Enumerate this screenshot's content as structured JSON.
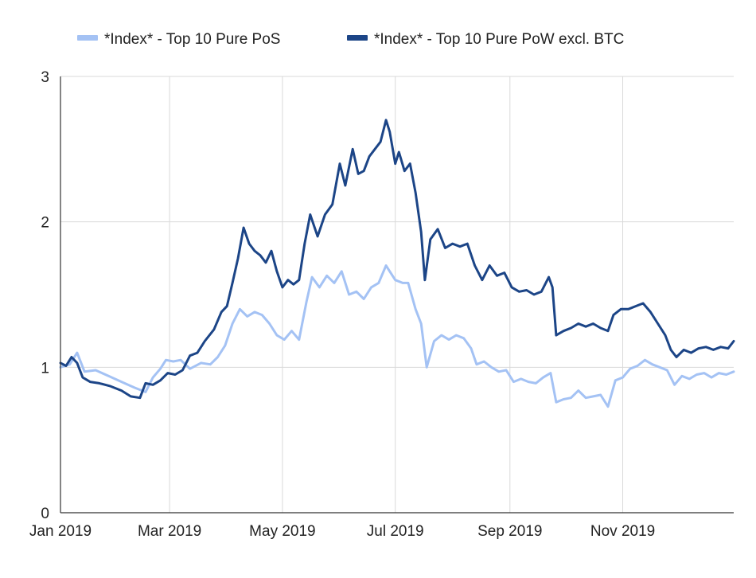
{
  "chart_data": {
    "type": "line",
    "title": "",
    "xlabel": "",
    "ylabel": "",
    "ylim": [
      0,
      3
    ],
    "xlim": [
      "2019-01-01",
      "2019-12-31"
    ],
    "grid": true,
    "legend_position": "top",
    "x_ticks": [
      {
        "label": "Jan 2019",
        "date": "2019-01-01"
      },
      {
        "label": "Mar 2019",
        "date": "2019-03-01"
      },
      {
        "label": "May 2019",
        "date": "2019-05-01"
      },
      {
        "label": "Jul 2019",
        "date": "2019-07-01"
      },
      {
        "label": "Sep 2019",
        "date": "2019-09-01"
      },
      {
        "label": "Nov 2019",
        "date": "2019-11-01"
      }
    ],
    "y_ticks": [
      {
        "label": "0",
        "value": 0
      },
      {
        "label": "1",
        "value": 1
      },
      {
        "label": "2",
        "value": 2
      },
      {
        "label": "3",
        "value": 3
      }
    ],
    "series": [
      {
        "name": "*Index* - Top 10 Pure PoS",
        "color": "#a4c2f4",
        "points": [
          [
            "2019-01-01",
            1.0
          ],
          [
            "2019-01-06",
            1.02
          ],
          [
            "2019-01-10",
            1.1
          ],
          [
            "2019-01-14",
            0.97
          ],
          [
            "2019-01-20",
            0.98
          ],
          [
            "2019-01-27",
            0.94
          ],
          [
            "2019-02-03",
            0.9
          ],
          [
            "2019-02-10",
            0.86
          ],
          [
            "2019-02-16",
            0.83
          ],
          [
            "2019-02-20",
            0.93
          ],
          [
            "2019-02-24",
            0.99
          ],
          [
            "2019-02-27",
            1.05
          ],
          [
            "2019-03-03",
            1.04
          ],
          [
            "2019-03-07",
            1.05
          ],
          [
            "2019-03-12",
            0.99
          ],
          [
            "2019-03-18",
            1.03
          ],
          [
            "2019-03-23",
            1.02
          ],
          [
            "2019-03-27",
            1.07
          ],
          [
            "2019-03-31",
            1.15
          ],
          [
            "2019-04-04",
            1.3
          ],
          [
            "2019-04-08",
            1.4
          ],
          [
            "2019-04-12",
            1.35
          ],
          [
            "2019-04-16",
            1.38
          ],
          [
            "2019-04-20",
            1.36
          ],
          [
            "2019-04-24",
            1.3
          ],
          [
            "2019-04-28",
            1.22
          ],
          [
            "2019-05-02",
            1.19
          ],
          [
            "2019-05-06",
            1.25
          ],
          [
            "2019-05-10",
            1.19
          ],
          [
            "2019-05-14",
            1.45
          ],
          [
            "2019-05-17",
            1.62
          ],
          [
            "2019-05-21",
            1.55
          ],
          [
            "2019-05-25",
            1.63
          ],
          [
            "2019-05-29",
            1.58
          ],
          [
            "2019-06-02",
            1.66
          ],
          [
            "2019-06-06",
            1.5
          ],
          [
            "2019-06-10",
            1.52
          ],
          [
            "2019-06-14",
            1.47
          ],
          [
            "2019-06-18",
            1.55
          ],
          [
            "2019-06-22",
            1.58
          ],
          [
            "2019-06-26",
            1.7
          ],
          [
            "2019-06-28",
            1.66
          ],
          [
            "2019-07-01",
            1.6
          ],
          [
            "2019-07-05",
            1.58
          ],
          [
            "2019-07-08",
            1.58
          ],
          [
            "2019-07-12",
            1.4
          ],
          [
            "2019-07-15",
            1.3
          ],
          [
            "2019-07-18",
            1.0
          ],
          [
            "2019-07-22",
            1.18
          ],
          [
            "2019-07-26",
            1.22
          ],
          [
            "2019-07-30",
            1.19
          ],
          [
            "2019-08-03",
            1.22
          ],
          [
            "2019-08-07",
            1.2
          ],
          [
            "2019-08-11",
            1.13
          ],
          [
            "2019-08-14",
            1.02
          ],
          [
            "2019-08-18",
            1.04
          ],
          [
            "2019-08-22",
            1.0
          ],
          [
            "2019-08-26",
            0.97
          ],
          [
            "2019-08-30",
            0.98
          ],
          [
            "2019-09-03",
            0.9
          ],
          [
            "2019-09-07",
            0.92
          ],
          [
            "2019-09-11",
            0.9
          ],
          [
            "2019-09-15",
            0.89
          ],
          [
            "2019-09-19",
            0.93
          ],
          [
            "2019-09-23",
            0.96
          ],
          [
            "2019-09-26",
            0.76
          ],
          [
            "2019-09-30",
            0.78
          ],
          [
            "2019-10-04",
            0.79
          ],
          [
            "2019-10-08",
            0.84
          ],
          [
            "2019-10-12",
            0.79
          ],
          [
            "2019-10-16",
            0.8
          ],
          [
            "2019-10-20",
            0.81
          ],
          [
            "2019-10-24",
            0.73
          ],
          [
            "2019-10-28",
            0.91
          ],
          [
            "2019-11-01",
            0.93
          ],
          [
            "2019-11-05",
            0.99
          ],
          [
            "2019-11-09",
            1.01
          ],
          [
            "2019-11-13",
            1.05
          ],
          [
            "2019-11-17",
            1.02
          ],
          [
            "2019-11-21",
            1.0
          ],
          [
            "2019-11-25",
            0.98
          ],
          [
            "2019-11-29",
            0.88
          ],
          [
            "2019-12-03",
            0.94
          ],
          [
            "2019-12-07",
            0.92
          ],
          [
            "2019-12-11",
            0.95
          ],
          [
            "2019-12-15",
            0.96
          ],
          [
            "2019-12-19",
            0.93
          ],
          [
            "2019-12-23",
            0.96
          ],
          [
            "2019-12-27",
            0.95
          ],
          [
            "2019-12-31",
            0.97
          ]
        ]
      },
      {
        "name": "*Index* - Top 10 Pure PoW excl. BTC",
        "color": "#1c4587",
        "points": [
          [
            "2019-01-01",
            1.03
          ],
          [
            "2019-01-04",
            1.01
          ],
          [
            "2019-01-07",
            1.07
          ],
          [
            "2019-01-10",
            1.03
          ],
          [
            "2019-01-13",
            0.93
          ],
          [
            "2019-01-17",
            0.9
          ],
          [
            "2019-01-22",
            0.89
          ],
          [
            "2019-01-28",
            0.87
          ],
          [
            "2019-02-03",
            0.84
          ],
          [
            "2019-02-08",
            0.8
          ],
          [
            "2019-02-13",
            0.79
          ],
          [
            "2019-02-16",
            0.89
          ],
          [
            "2019-02-20",
            0.88
          ],
          [
            "2019-02-24",
            0.91
          ],
          [
            "2019-02-28",
            0.96
          ],
          [
            "2019-03-04",
            0.95
          ],
          [
            "2019-03-08",
            0.98
          ],
          [
            "2019-03-12",
            1.08
          ],
          [
            "2019-03-16",
            1.1
          ],
          [
            "2019-03-20",
            1.18
          ],
          [
            "2019-03-25",
            1.26
          ],
          [
            "2019-03-29",
            1.38
          ],
          [
            "2019-04-01",
            1.42
          ],
          [
            "2019-04-04",
            1.58
          ],
          [
            "2019-04-07",
            1.75
          ],
          [
            "2019-04-10",
            1.96
          ],
          [
            "2019-04-13",
            1.85
          ],
          [
            "2019-04-16",
            1.8
          ],
          [
            "2019-04-19",
            1.77
          ],
          [
            "2019-04-22",
            1.72
          ],
          [
            "2019-04-25",
            1.8
          ],
          [
            "2019-04-28",
            1.66
          ],
          [
            "2019-05-01",
            1.55
          ],
          [
            "2019-05-04",
            1.6
          ],
          [
            "2019-05-07",
            1.57
          ],
          [
            "2019-05-10",
            1.6
          ],
          [
            "2019-05-13",
            1.85
          ],
          [
            "2019-05-16",
            2.05
          ],
          [
            "2019-05-20",
            1.9
          ],
          [
            "2019-05-24",
            2.05
          ],
          [
            "2019-05-28",
            2.12
          ],
          [
            "2019-06-01",
            2.4
          ],
          [
            "2019-06-04",
            2.25
          ],
          [
            "2019-06-08",
            2.5
          ],
          [
            "2019-06-11",
            2.33
          ],
          [
            "2019-06-14",
            2.35
          ],
          [
            "2019-06-17",
            2.45
          ],
          [
            "2019-06-20",
            2.5
          ],
          [
            "2019-06-23",
            2.55
          ],
          [
            "2019-06-26",
            2.7
          ],
          [
            "2019-06-28",
            2.62
          ],
          [
            "2019-07-01",
            2.4
          ],
          [
            "2019-07-03",
            2.48
          ],
          [
            "2019-07-06",
            2.35
          ],
          [
            "2019-07-09",
            2.4
          ],
          [
            "2019-07-12",
            2.2
          ],
          [
            "2019-07-15",
            1.93
          ],
          [
            "2019-07-17",
            1.6
          ],
          [
            "2019-07-20",
            1.88
          ],
          [
            "2019-07-24",
            1.95
          ],
          [
            "2019-07-28",
            1.82
          ],
          [
            "2019-08-01",
            1.85
          ],
          [
            "2019-08-05",
            1.83
          ],
          [
            "2019-08-09",
            1.85
          ],
          [
            "2019-08-13",
            1.7
          ],
          [
            "2019-08-17",
            1.6
          ],
          [
            "2019-08-21",
            1.7
          ],
          [
            "2019-08-25",
            1.63
          ],
          [
            "2019-08-29",
            1.65
          ],
          [
            "2019-09-02",
            1.55
          ],
          [
            "2019-09-06",
            1.52
          ],
          [
            "2019-09-10",
            1.53
          ],
          [
            "2019-09-14",
            1.5
          ],
          [
            "2019-09-18",
            1.52
          ],
          [
            "2019-09-22",
            1.62
          ],
          [
            "2019-09-24",
            1.55
          ],
          [
            "2019-09-26",
            1.22
          ],
          [
            "2019-09-30",
            1.25
          ],
          [
            "2019-10-04",
            1.27
          ],
          [
            "2019-10-08",
            1.3
          ],
          [
            "2019-10-12",
            1.28
          ],
          [
            "2019-10-16",
            1.3
          ],
          [
            "2019-10-20",
            1.27
          ],
          [
            "2019-10-24",
            1.25
          ],
          [
            "2019-10-27",
            1.36
          ],
          [
            "2019-10-31",
            1.4
          ],
          [
            "2019-11-04",
            1.4
          ],
          [
            "2019-11-08",
            1.42
          ],
          [
            "2019-11-12",
            1.44
          ],
          [
            "2019-11-16",
            1.38
          ],
          [
            "2019-11-20",
            1.3
          ],
          [
            "2019-11-24",
            1.22
          ],
          [
            "2019-11-27",
            1.12
          ],
          [
            "2019-11-30",
            1.07
          ],
          [
            "2019-12-04",
            1.12
          ],
          [
            "2019-12-08",
            1.1
          ],
          [
            "2019-12-12",
            1.13
          ],
          [
            "2019-12-16",
            1.14
          ],
          [
            "2019-12-20",
            1.12
          ],
          [
            "2019-12-24",
            1.14
          ],
          [
            "2019-12-28",
            1.13
          ],
          [
            "2019-12-31",
            1.18
          ]
        ]
      }
    ]
  }
}
